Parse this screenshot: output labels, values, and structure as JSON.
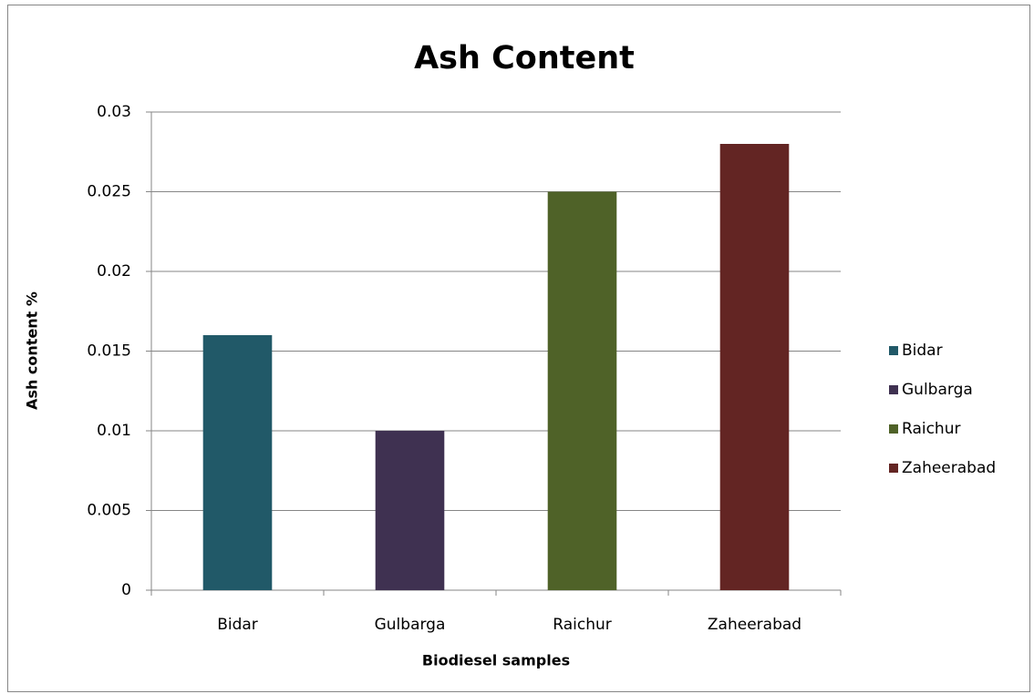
{
  "chart_data": {
    "type": "bar",
    "title": "Ash Content",
    "x_label": "Biodiesel samples",
    "y_label": "Ash content %",
    "categories": [
      "Bidar",
      "Gulbarga",
      "Raichur",
      "Zaheerabad"
    ],
    "values": [
      0.016,
      0.01,
      0.025,
      0.028
    ],
    "colors": [
      "#215968",
      "#3f3151",
      "#4f6228",
      "#632523"
    ],
    "ylim": [
      0,
      0.03
    ],
    "yticks": [
      0,
      0.005,
      0.01,
      0.015,
      0.02,
      0.025,
      0.03
    ],
    "grid": true,
    "legend": "right"
  }
}
